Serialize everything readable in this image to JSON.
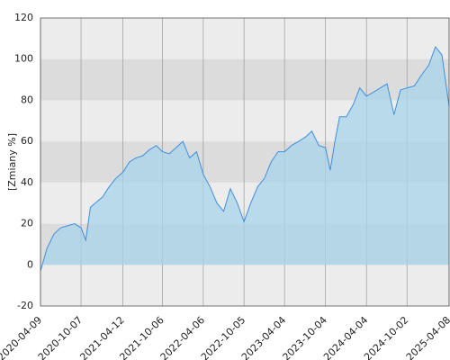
{
  "chart_data": {
    "type": "area",
    "y_label": "[Zmiany %]",
    "x": [
      "2020-04-09",
      "2020-05-08",
      "2020-06-08",
      "2020-07-08",
      "2020-08-07",
      "2020-09-08",
      "2020-10-07",
      "2020-10-28",
      "2020-11-18",
      "2020-12-09",
      "2021-01-11",
      "2021-02-10",
      "2021-03-11",
      "2021-04-12",
      "2021-05-11",
      "2021-06-10",
      "2021-07-09",
      "2021-08-09",
      "2021-09-08",
      "2021-10-06",
      "2021-11-05",
      "2021-12-06",
      "2022-01-05",
      "2022-02-04",
      "2022-03-07",
      "2022-04-06",
      "2022-05-06",
      "2022-06-06",
      "2022-07-06",
      "2022-08-05",
      "2022-09-05",
      "2022-10-05",
      "2022-11-04",
      "2022-12-05",
      "2023-01-04",
      "2023-02-03",
      "2023-03-06",
      "2023-04-04",
      "2023-05-05",
      "2023-06-05",
      "2023-07-05",
      "2023-08-04",
      "2023-09-04",
      "2023-10-04",
      "2023-10-25",
      "2023-11-15",
      "2023-12-06",
      "2024-01-05",
      "2024-02-05",
      "2024-03-05",
      "2024-04-04",
      "2024-05-06",
      "2024-06-05",
      "2024-07-05",
      "2024-08-05",
      "2024-09-03",
      "2024-10-02",
      "2024-11-04",
      "2024-12-04",
      "2025-01-07",
      "2025-02-06",
      "2025-03-07",
      "2025-04-08"
    ],
    "series": [
      {
        "color": "#3d8fe0",
        "fill": "#a8d4ea",
        "values": [
          -3,
          8,
          15,
          18,
          19,
          20,
          18,
          12,
          28,
          30,
          33,
          38,
          42,
          45,
          50,
          52,
          53,
          56,
          58,
          55,
          54,
          57,
          60,
          52,
          55,
          44,
          38,
          30,
          26,
          37,
          30,
          21,
          30,
          38,
          42,
          50,
          55,
          55,
          58,
          60,
          62,
          65,
          58,
          57,
          46,
          60,
          72,
          72,
          78,
          86,
          82,
          84,
          86,
          88,
          73,
          85,
          86,
          87,
          92,
          97,
          106,
          102,
          77
        ]
      }
    ],
    "xlim": [
      "2020-04-09",
      "2025-04-08"
    ],
    "xticks": [
      "2020-04-09",
      "2020-10-07",
      "2021-04-12",
      "2021-10-06",
      "2022-04-06",
      "2022-10-05",
      "2023-04-04",
      "2023-10-04",
      "2024-04-04",
      "2024-10-02",
      "2025-04-08"
    ],
    "ylim": [
      -20,
      120
    ],
    "yticks": [
      -20,
      0,
      20,
      40,
      60,
      80,
      100,
      120
    ],
    "grid": true
  }
}
